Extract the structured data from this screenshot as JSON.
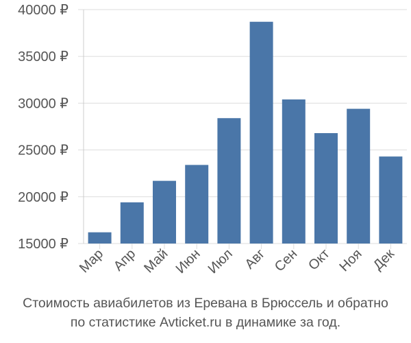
{
  "chart_data": {
    "type": "bar",
    "categories": [
      "Мар",
      "Апр",
      "Май",
      "Июн",
      "Июл",
      "Авг",
      "Сен",
      "Окт",
      "Ноя",
      "Дек"
    ],
    "values": [
      16200,
      19400,
      21700,
      23400,
      28400,
      38700,
      30400,
      26800,
      29400,
      24300
    ],
    "ylim": [
      15000,
      40000
    ],
    "yticks": [
      15000,
      20000,
      25000,
      30000,
      35000,
      40000
    ],
    "ytick_labels": [
      "15000 ₽",
      "20000 ₽",
      "25000 ₽",
      "30000 ₽",
      "35000 ₽",
      "40000 ₽"
    ],
    "grid": true,
    "bar_color": "#4a76a8",
    "grid_color": "#dddddd",
    "caption_line1": "Стоимость авиабилетов из Еревана в Брюссель и обратно",
    "caption_line2": "по статистике Avticket.ru в динамике за год."
  }
}
